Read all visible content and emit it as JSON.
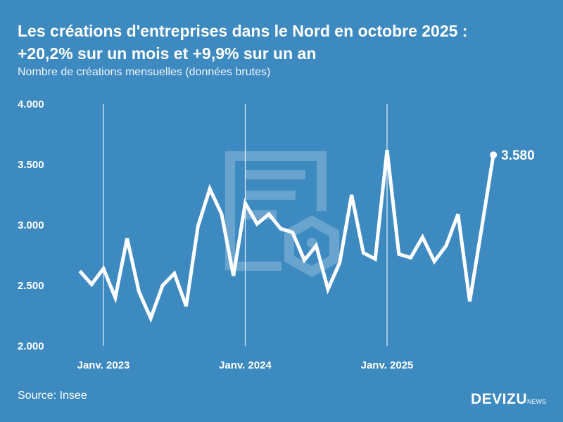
{
  "title_line1": "Les créations d'entreprises dans le Nord en octobre 2025 :",
  "title_line2": "+20,2% sur un mois et +9,9% sur un an",
  "subtitle": "Nombre de créations mensuelles (données brutes)",
  "source": "Source: Insee",
  "logo": {
    "main": "DEVIZU",
    "sub": "NEWS"
  },
  "colors": {
    "background": "#3d8ac1",
    "line": "#ffffff"
  },
  "chart_data": {
    "type": "line",
    "title": "Les créations d'entreprises dans le Nord en octobre 2025 : +20,2% sur un mois et +9,9% sur un an",
    "ylabel": "Nombre de créations mensuelles (données brutes)",
    "ylim": [
      2000,
      4000
    ],
    "yticks": [
      {
        "v": 2000,
        "label": "2.000"
      },
      {
        "v": 2500,
        "label": "2.500"
      },
      {
        "v": 3000,
        "label": "3.000"
      },
      {
        "v": 3500,
        "label": "3.500"
      },
      {
        "v": 4000,
        "label": "4.000"
      }
    ],
    "xticks": [
      {
        "x": "2023-01",
        "label": "Janv. 2023"
      },
      {
        "x": "2024-01",
        "label": "Janv. 2024"
      },
      {
        "x": "2025-01",
        "label": "Janv. 2025"
      }
    ],
    "grid": "vertical lines at January",
    "x": [
      "2022-11",
      "2022-12",
      "2023-01",
      "2023-02",
      "2023-03",
      "2023-04",
      "2023-05",
      "2023-06",
      "2023-07",
      "2023-08",
      "2023-09",
      "2023-10",
      "2023-11",
      "2023-12",
      "2024-01",
      "2024-02",
      "2024-03",
      "2024-04",
      "2024-05",
      "2024-06",
      "2024-07",
      "2024-08",
      "2024-09",
      "2024-10",
      "2024-11",
      "2024-12",
      "2025-01",
      "2025-02",
      "2025-03",
      "2025-04",
      "2025-05",
      "2025-06",
      "2025-07",
      "2025-08",
      "2025-09",
      "2025-10"
    ],
    "values": [
      2620,
      2510,
      2640,
      2400,
      2890,
      2450,
      2230,
      2500,
      2600,
      2330,
      2990,
      3300,
      3090,
      2580,
      3180,
      3010,
      3090,
      2970,
      2940,
      2710,
      2830,
      2470,
      2690,
      3250,
      2770,
      2720,
      3620,
      2760,
      2730,
      2900,
      2700,
      2830,
      3090,
      2370,
      2970,
      3580
    ],
    "last_label": "3.580"
  }
}
